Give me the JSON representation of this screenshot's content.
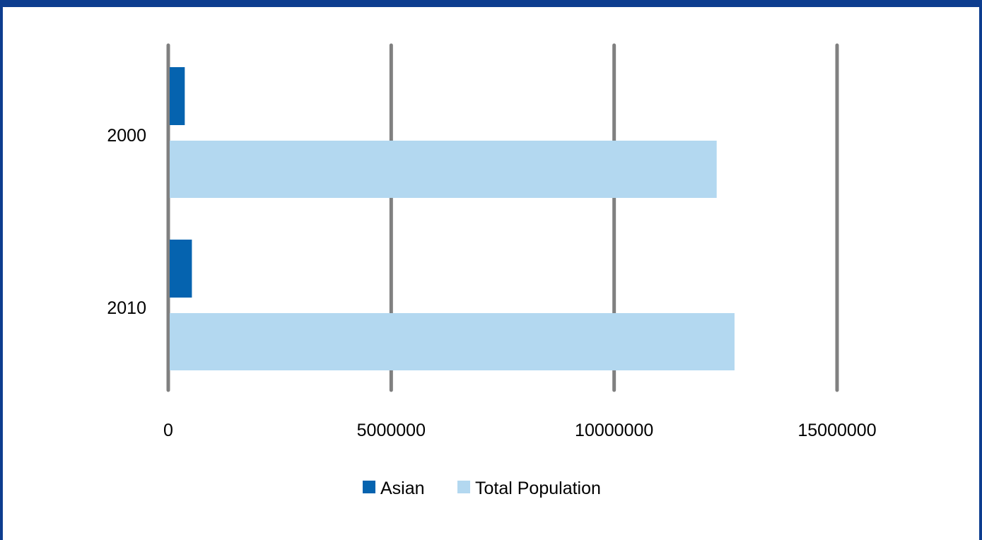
{
  "chart_data": {
    "type": "bar",
    "orientation": "horizontal",
    "categories": [
      "2000",
      "2010"
    ],
    "series": [
      {
        "name": "Asian",
        "values": [
          370000,
          530000
        ],
        "color": "#0563af"
      },
      {
        "name": "Total Population",
        "values": [
          12300000,
          12700000
        ],
        "color": "#b3d8f0"
      }
    ],
    "xlim": [
      0,
      15000000
    ],
    "xticks": [
      "0",
      "5000000",
      "10000000",
      "15000000"
    ],
    "grid": true,
    "legend_position": "bottom",
    "title": "",
    "xlabel": "",
    "ylabel": ""
  },
  "colors": {
    "frame": "#0d3d8f",
    "gridline": "#808080"
  }
}
